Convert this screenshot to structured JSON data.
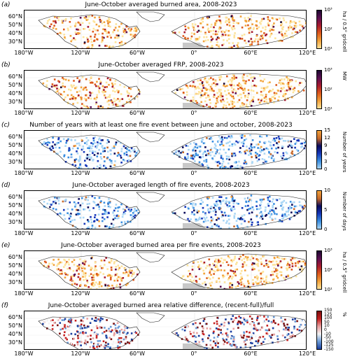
{
  "panels": [
    {
      "id": "a",
      "label": "(a)",
      "title": "June-October averaged burned area, 2008-2023",
      "colormap": "inferno_r",
      "colors": [
        "#fde39a",
        "#f2a23a",
        "#dd5a1c",
        "#a81b2e",
        "#5c0f52",
        "#1c0832"
      ],
      "cbar_ticks": [
        "10³",
        "10²",
        "10¹"
      ],
      "cbar_unit": "ha / 0.5° gridcell",
      "lat_labels": [
        "60°N",
        "50°N",
        "40°N",
        "30°N"
      ],
      "lon_labels": [
        "180°W",
        "120°W",
        "60°W",
        "0°",
        "60°E",
        "120°E"
      ]
    },
    {
      "id": "b",
      "label": "(b)",
      "title": "June-October averaged FRP, 2008-2023",
      "colormap": "inferno_r",
      "colors": [
        "#fde39a",
        "#f2a23a",
        "#dd5a1c",
        "#a81b2e",
        "#5c0f52",
        "#1c0832"
      ],
      "cbar_ticks": [
        "10³",
        "10²",
        "10¹"
      ],
      "cbar_unit": "MW",
      "lat_labels": [
        "60°N",
        "50°N",
        "40°N",
        "30°N"
      ],
      "lon_labels": [
        "180°W",
        "120°W",
        "60°W",
        "0°",
        "60°E",
        "120°E"
      ]
    },
    {
      "id": "c",
      "label": "(c)",
      "title": "Number of years with at least one fire event between june and october, 2008-2023",
      "colormap": "blue-to-orange",
      "colors": [
        "#a9d6f5",
        "#3a8ee0",
        "#1536b8",
        "#0a0a5a",
        "#c86a2a",
        "#f2a23a"
      ],
      "cbar_ticks": [
        "15",
        "12",
        "9",
        "6",
        "3",
        "0"
      ],
      "cbar_unit": "Number of years",
      "lat_labels": [
        "60°N",
        "50°N",
        "40°N",
        "30°N"
      ],
      "lon_labels": [
        "180°W",
        "120°W",
        "60°W",
        "0°",
        "60°E",
        "120°E"
      ]
    },
    {
      "id": "d",
      "label": "(d)",
      "title": "June-October averaged length of fire events, 2008-2023",
      "colormap": "blue-to-orange",
      "colors": [
        "#a9d6f5",
        "#3a8ee0",
        "#1536b8",
        "#0a0a5a",
        "#c86a2a",
        "#f2a23a"
      ],
      "cbar_ticks": [
        "10",
        "5",
        "0"
      ],
      "cbar_unit": "Number of days",
      "lat_labels": [
        "60°N",
        "50°N",
        "40°N",
        "30°N"
      ],
      "lon_labels": [
        "180°W",
        "120°W",
        "60°W",
        "0°",
        "60°E",
        "120°E"
      ]
    },
    {
      "id": "e",
      "label": "(e)",
      "title": "June-October averaged burned area per fire events, 2008-2023",
      "colormap": "inferno_r",
      "colors": [
        "#fde39a",
        "#f2a23a",
        "#dd5a1c",
        "#a81b2e",
        "#5c0f52",
        "#1c0832"
      ],
      "cbar_ticks": [
        "10³",
        "10²",
        "10¹"
      ],
      "cbar_unit": "ha / 0.5° gridcell",
      "lat_labels": [
        "60°N",
        "50°N",
        "40°N",
        "30°N"
      ],
      "lon_labels": [
        "180°W",
        "120°W",
        "60°W",
        "0°",
        "60°E",
        "120°E"
      ]
    },
    {
      "id": "f",
      "label": "(f)",
      "title": "June-October averaged burned area relative difference, (recent-full)/full",
      "colormap": "diverging-red-blue",
      "colors": [
        "#1a3ea0",
        "#6a9ad6",
        "#f2f2f2",
        "#e8a0a0",
        "#c62020",
        "#7a0e0e"
      ],
      "cbar_ticks": [
        "150",
        "125",
        "100",
        "50",
        "10",
        "0",
        "-10",
        "-50",
        "-100",
        "-125",
        "-150"
      ],
      "cbar_unit": "%",
      "lat_labels": [
        "60°N",
        "50°N",
        "40°N",
        "30°N"
      ],
      "lon_labels": [
        "180°W",
        "120°W",
        "60°W",
        "0°",
        "60°E",
        "120°E"
      ]
    }
  ]
}
